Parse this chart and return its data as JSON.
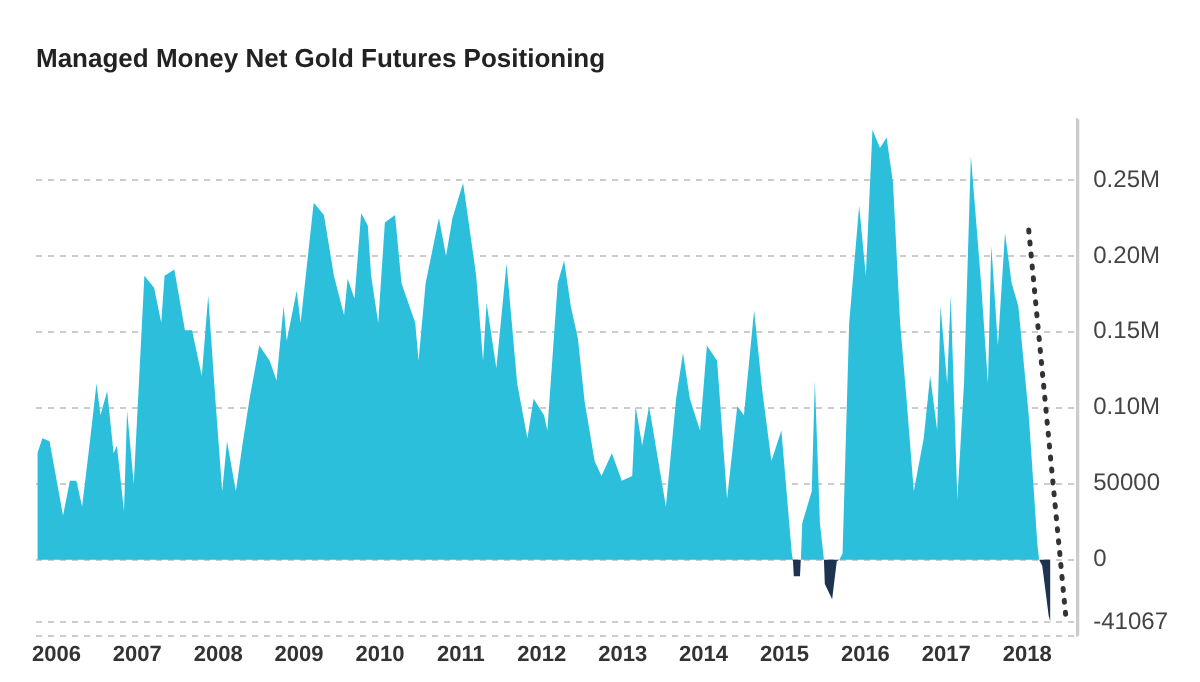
{
  "chart_data": {
    "type": "area",
    "title": "Managed Money Net Gold Futures Positioning",
    "xlim": [
      "2005-10-01",
      "2018-08-15"
    ],
    "xticks": [
      "2006",
      "2007",
      "2008",
      "2009",
      "2010",
      "2011",
      "2012",
      "2013",
      "2014",
      "2015",
      "2016",
      "2017",
      "2018"
    ],
    "ylim": [
      -50000,
      290000
    ],
    "yticks": [
      {
        "value": -50000,
        "label": null
      },
      {
        "value": -41067,
        "label": "-41067"
      },
      0,
      50000,
      {
        "value": 100000,
        "label": "0.10M"
      },
      {
        "value": 150000,
        "label": "0.15M"
      },
      {
        "value": 200000,
        "label": "0.20M"
      },
      {
        "value": 250000,
        "label": "0.25M"
      }
    ],
    "grid": "y",
    "series": [
      {
        "color": "#2bbfdc",
        "x": [
          "2005-10-07",
          "2005-10-30",
          "2005-12-01",
          "2006-01-31",
          "2006-03-03",
          "2006-04-01",
          "2006-04-27",
          "2006-06-03",
          "2006-07-01",
          "2006-07-19",
          "2006-08-18",
          "2006-09-16",
          "2006-10-01",
          "2006-11-02",
          "2006-11-16",
          "2006-12-16",
          "2007-02-02",
          "2007-03-18",
          "2007-04-19",
          "2007-05-04",
          "2007-06-17",
          "2007-08-04",
          "2007-09-05",
          "2007-10-19",
          "2007-11-17",
          "2007-12-19",
          "2008-01-19",
          "2008-02-10",
          "2008-03-21",
          "2008-04-19",
          "2008-05-22",
          "2008-07-05",
          "2008-08-21",
          "2008-09-21",
          "2008-10-23",
          "2008-11-06",
          "2008-12-21",
          "2009-01-08",
          "2009-03-08",
          "2009-04-23",
          "2009-06-07",
          "2009-07-23",
          "2009-08-08",
          "2009-09-08",
          "2009-10-08",
          "2009-11-07",
          "2009-11-22",
          "2009-12-24",
          "2010-01-23",
          "2010-03-10",
          "2010-04-08",
          "2010-06-09",
          "2010-06-24",
          "2010-07-26",
          "2010-09-24",
          "2010-10-26",
          "2010-11-24",
          "2011-01-11",
          "2011-03-11",
          "2011-04-11",
          "2011-04-27",
          "2011-06-10",
          "2011-07-26",
          "2011-09-12",
          "2011-10-28",
          "2011-11-25",
          "2012-01-11",
          "2012-01-26",
          "2012-03-13",
          "2012-04-11",
          "2012-05-11",
          "2012-06-12",
          "2012-07-13",
          "2012-08-27",
          "2012-09-27",
          "2012-11-13",
          "2012-12-28",
          "2013-02-13",
          "2013-02-28",
          "2013-03-30",
          "2013-04-30",
          "2013-05-30",
          "2013-07-15",
          "2013-08-30",
          "2013-09-30",
          "2013-10-31",
          "2013-12-16",
          "2014-01-16",
          "2014-03-03",
          "2014-04-17",
          "2014-06-02",
          "2014-07-02",
          "2014-08-17",
          "2014-09-23",
          "2014-11-03",
          "2014-12-18",
          "2015-02-03",
          "2015-02-08",
          "2015-03-16",
          "2015-03-22",
          "2015-05-04",
          "2015-05-18",
          "2015-06-10",
          "2015-06-28",
          "2015-09-05",
          "2015-09-20",
          "2015-10-20",
          "2015-12-04",
          "2016-01-03",
          "2016-02-02",
          "2016-03-07",
          "2016-04-06",
          "2016-05-05",
          "2016-06-06",
          "2016-07-05",
          "2016-08-07",
          "2016-09-21",
          "2016-10-20",
          "2016-11-21",
          "2016-12-06",
          "2017-01-05",
          "2017-01-21",
          "2017-02-20",
          "2017-03-22",
          "2017-04-22",
          "2017-06-07",
          "2017-07-08",
          "2017-07-23",
          "2017-08-22",
          "2017-09-23",
          "2017-10-23",
          "2017-11-22",
          "2018-01-08",
          "2018-01-22",
          "2018-02-16",
          "2018-02-24"
        ],
        "values": [
          70000,
          80000,
          78000,
          29000,
          52000,
          52000,
          35000,
          80000,
          116000,
          95000,
          111000,
          70000,
          75000,
          32000,
          98000,
          50000,
          187000,
          179000,
          156000,
          187000,
          191000,
          151000,
          151000,
          121000,
          174000,
          106000,
          45000,
          78000,
          45000,
          75000,
          106000,
          141000,
          131000,
          118000,
          167000,
          144000,
          177000,
          156000,
          235000,
          227000,
          187000,
          161000,
          185000,
          172000,
          228000,
          220000,
          187000,
          156000,
          222000,
          227000,
          182000,
          156000,
          131000,
          182000,
          225000,
          200000,
          225000,
          248000,
          187000,
          131000,
          169000,
          126000,
          195000,
          116000,
          80000,
          106000,
          95000,
          85000,
          182000,
          197000,
          167000,
          146000,
          104000,
          65000,
          55000,
          70000,
          52000,
          55000,
          101000,
          75000,
          101000,
          75000,
          35000,
          106000,
          136000,
          106000,
          85000,
          141000,
          131000,
          40000,
          101000,
          95000,
          164000,
          111000,
          65000,
          85000,
          4000,
          0,
          0,
          24000,
          45000,
          118000,
          24000,
          0,
          0,
          4000,
          156000,
          233000,
          187000,
          283000,
          271000,
          278000,
          248000,
          156000,
          106000,
          45000,
          80000,
          121000,
          85000,
          167000,
          116000,
          174000,
          40000,
          116000,
          266000,
          182000,
          116000,
          207000,
          141000,
          215000,
          182000,
          167000,
          95000,
          65000,
          10000,
          0
        ]
      },
      {
        "color": "#1e3350",
        "x": [
          "2015-02-08",
          "2015-02-12",
          "2015-03-12",
          "2015-03-16",
          "2015-05-01",
          "2015-06-28",
          "2015-07-02",
          "2015-08-04",
          "2015-08-25",
          "2015-09-05",
          "2016-01-01",
          "2018-02-24",
          "2018-03-10",
          "2018-04-08",
          "2018-04-16"
        ],
        "values": [
          0,
          -11000,
          -11000,
          0,
          null,
          0,
          -16000,
          -26000,
          -1000,
          0,
          null,
          0,
          -4000,
          -37000,
          -41067
        ]
      },
      {
        "type": "line",
        "color": "#333333",
        "line_style": "dotted",
        "x": [
          "2018-01-08",
          "2018-06-24"
        ],
        "values": [
          217000,
          -37000
        ]
      }
    ]
  }
}
